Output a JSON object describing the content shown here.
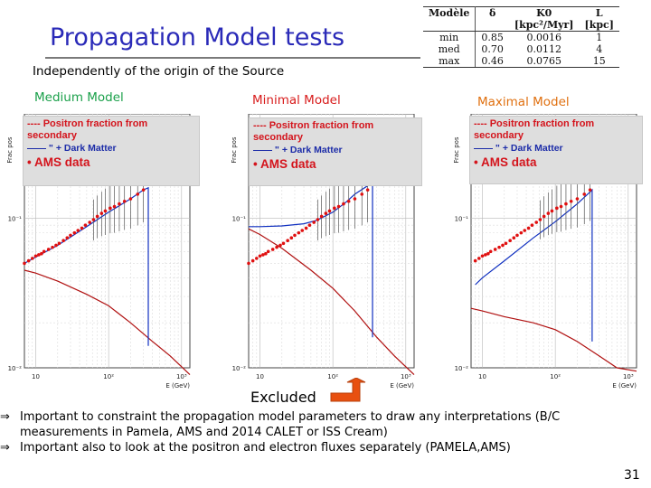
{
  "title": "Propagation Model tests",
  "subtitle": "Independently of the origin of the Source",
  "model_labels": {
    "medium": "Medium Model",
    "minimal": "Minimal Model",
    "maximal": "Maximal Model"
  },
  "param_table": {
    "headers": [
      "Modèle",
      "δ",
      "K0",
      "L"
    ],
    "units": [
      "",
      "",
      "[kpc²/Myr]",
      "[kpc]"
    ],
    "rows": [
      [
        "min",
        "0.85",
        "0.0016",
        "1"
      ],
      [
        "med",
        "0.70",
        "0.0112",
        "4"
      ],
      [
        "max",
        "0.46",
        "0.0765",
        "15"
      ]
    ]
  },
  "legend": {
    "line1": "---- Positron fraction from secondary",
    "line2": "—— \" + Dark Matter",
    "line3": "• AMS data"
  },
  "colors": {
    "title": "#2a2ab8",
    "medium": "#1aa04a",
    "minimal": "#d81c1c",
    "maximal": "#e07010",
    "secondary": "#b01010",
    "dark_matter": "#1030c0",
    "ams": "#e01010",
    "excluded_arrow": "#e85010"
  },
  "plot_axis": {
    "ylabel": "Frac pos",
    "xlabel": "E (GeV)",
    "xticks": [
      "10",
      "10²",
      "10³"
    ],
    "yticks": [
      "10⁻¹",
      "10⁻²"
    ]
  },
  "chart_data": [
    {
      "type": "line",
      "label": "Medium Model",
      "xscale": "log",
      "yscale": "log",
      "xlim": [
        7,
        1300
      ],
      "ylim": [
        0.01,
        0.5
      ],
      "grid": true,
      "series": [
        {
          "name": "Positron fraction from secondary",
          "x": [
            7,
            10,
            20,
            50,
            100,
            200,
            400,
            700,
            1300
          ],
          "y": [
            0.045,
            0.043,
            0.038,
            0.031,
            0.026,
            0.02,
            0.015,
            0.012,
            0.009
          ]
        },
        {
          "name": "+ Dark Matter",
          "x": [
            7,
            10,
            20,
            50,
            100,
            200,
            300,
            350,
            350
          ],
          "y": [
            0.05,
            0.055,
            0.066,
            0.088,
            0.11,
            0.135,
            0.155,
            0.16,
            0.014
          ]
        },
        {
          "name": "AMS data",
          "x": [
            7,
            8,
            9,
            10,
            11,
            12,
            13,
            15,
            17,
            19,
            21,
            24,
            27,
            30,
            34,
            38,
            43,
            48,
            55,
            62,
            70,
            80,
            90,
            105,
            120,
            140,
            165,
            200,
            250,
            300
          ],
          "y": [
            0.05,
            0.052,
            0.054,
            0.056,
            0.057,
            0.058,
            0.06,
            0.062,
            0.064,
            0.066,
            0.068,
            0.071,
            0.074,
            0.077,
            0.08,
            0.083,
            0.086,
            0.09,
            0.094,
            0.098,
            0.103,
            0.108,
            0.112,
            0.117,
            0.12,
            0.125,
            0.13,
            0.135,
            0.145,
            0.155
          ]
        }
      ]
    },
    {
      "type": "line",
      "label": "Minimal Model",
      "xscale": "log",
      "yscale": "log",
      "xlim": [
        7,
        1300
      ],
      "ylim": [
        0.01,
        0.5
      ],
      "grid": true,
      "series": [
        {
          "name": "Positron fraction from secondary",
          "x": [
            7,
            10,
            20,
            50,
            100,
            200,
            400,
            700,
            1300
          ],
          "y": [
            0.085,
            0.078,
            0.063,
            0.045,
            0.034,
            0.024,
            0.016,
            0.012,
            0.009
          ]
        },
        {
          "name": "+ Dark Matter",
          "x": [
            7,
            10,
            20,
            40,
            60,
            100,
            150,
            200,
            300,
            350,
            350
          ],
          "y": [
            0.088,
            0.088,
            0.089,
            0.092,
            0.097,
            0.11,
            0.128,
            0.145,
            0.165,
            0.168,
            0.016
          ]
        },
        {
          "name": "AMS data",
          "x": [
            7,
            8,
            9,
            10,
            11,
            12,
            13,
            15,
            17,
            19,
            21,
            24,
            27,
            30,
            34,
            38,
            43,
            48,
            55,
            62,
            70,
            80,
            90,
            105,
            120,
            140,
            165,
            200,
            250,
            300
          ],
          "y": [
            0.05,
            0.052,
            0.054,
            0.056,
            0.057,
            0.058,
            0.06,
            0.062,
            0.064,
            0.066,
            0.068,
            0.071,
            0.074,
            0.077,
            0.08,
            0.083,
            0.086,
            0.09,
            0.094,
            0.098,
            0.103,
            0.108,
            0.112,
            0.117,
            0.12,
            0.125,
            0.13,
            0.135,
            0.145,
            0.155
          ]
        }
      ]
    },
    {
      "type": "line",
      "label": "Maximal Model",
      "xscale": "log",
      "yscale": "log",
      "xlim": [
        7,
        1300
      ],
      "ylim": [
        0.01,
        0.5
      ],
      "grid": true,
      "series": [
        {
          "name": "Positron fraction from secondary",
          "x": [
            7,
            10,
            20,
            50,
            100,
            200,
            400,
            700,
            1300
          ],
          "y": [
            0.025,
            0.024,
            0.022,
            0.02,
            0.018,
            0.015,
            0.012,
            0.01,
            0.0095
          ]
        },
        {
          "name": "+ Dark Matter",
          "x": [
            8,
            10,
            20,
            50,
            100,
            200,
            300,
            320,
            320
          ],
          "y": [
            0.036,
            0.04,
            0.052,
            0.074,
            0.095,
            0.125,
            0.15,
            0.155,
            0.015
          ]
        },
        {
          "name": "AMS data",
          "x": [
            8,
            9,
            10,
            11,
            12,
            13,
            15,
            17,
            19,
            21,
            24,
            27,
            30,
            34,
            38,
            43,
            48,
            55,
            62,
            70,
            80,
            90,
            105,
            120,
            140,
            165,
            200,
            250,
            300
          ],
          "y": [
            0.052,
            0.054,
            0.056,
            0.057,
            0.058,
            0.06,
            0.062,
            0.064,
            0.066,
            0.068,
            0.071,
            0.074,
            0.077,
            0.08,
            0.083,
            0.086,
            0.09,
            0.094,
            0.098,
            0.103,
            0.108,
            0.112,
            0.117,
            0.12,
            0.125,
            0.13,
            0.135,
            0.145,
            0.155
          ]
        }
      ]
    }
  ],
  "excluded_label": "Excluded",
  "bullets": [
    "Important to constraint the propagation model parameters to draw any interpretations (B/C measurements in Pamela, AMS and 2014 CALET or ISS Cream)",
    "Important also to look at the positron and electron fluxes separately (PAMELA,AMS)"
  ],
  "bullet_marker": "⇒",
  "page_number": "31"
}
